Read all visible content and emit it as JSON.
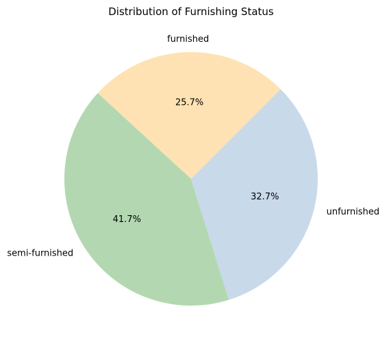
{
  "chart_data": {
    "type": "pie",
    "title": "Distribution of Furnishing Status",
    "start_angle_deg": 45,
    "direction": "counterclockwise",
    "slices": [
      {
        "label": "furnished",
        "value": 25.7,
        "pct_label": "25.7%",
        "color": "#ffe2b3"
      },
      {
        "label": "semi-furnished",
        "value": 41.7,
        "pct_label": "41.7%",
        "color": "#b3d8b1"
      },
      {
        "label": "unfurnished",
        "value": 32.7,
        "pct_label": "32.7%",
        "color": "#c8d9ea"
      }
    ],
    "legend": "none"
  }
}
